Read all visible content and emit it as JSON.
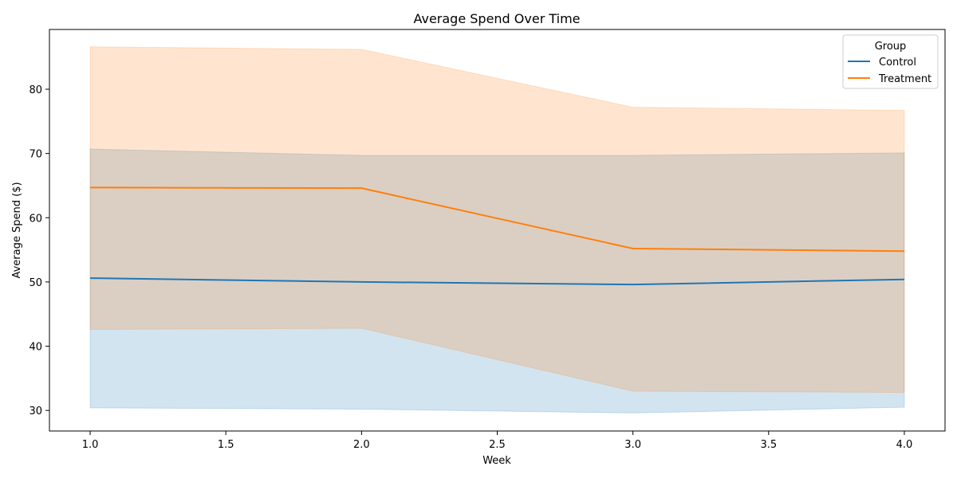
{
  "chart_data": {
    "type": "line",
    "title": "Average Spend Over Time",
    "xlabel": "Week",
    "ylabel": "Average Spend ($)",
    "xlim": [
      0.85,
      4.15
    ],
    "ylim": [
      26.8,
      89.3
    ],
    "x_ticks": [
      1.0,
      1.5,
      2.0,
      2.5,
      3.0,
      3.5,
      4.0
    ],
    "x_tick_labels": [
      "1.0",
      "1.5",
      "2.0",
      "2.5",
      "3.0",
      "3.5",
      "4.0"
    ],
    "y_ticks": [
      30,
      40,
      50,
      60,
      70,
      80
    ],
    "y_tick_labels": [
      "30",
      "40",
      "50",
      "60",
      "70",
      "80"
    ],
    "grid": false,
    "legend": {
      "title": "Group",
      "position": "top-right"
    },
    "x": [
      1,
      2,
      3,
      4
    ],
    "series": [
      {
        "name": "Control",
        "color": "#1f77b4",
        "values": [
          50.6,
          50.0,
          49.6,
          50.4
        ],
        "ci_lower": [
          30.4,
          30.2,
          29.6,
          30.5
        ],
        "ci_upper": [
          70.7,
          69.7,
          69.7,
          70.1
        ]
      },
      {
        "name": "Treatment",
        "color": "#ff7f0e",
        "values": [
          64.7,
          64.6,
          55.2,
          54.8
        ],
        "ci_lower": [
          42.6,
          42.8,
          33.0,
          32.8
        ],
        "ci_upper": [
          86.6,
          86.2,
          77.2,
          76.7
        ]
      }
    ]
  }
}
